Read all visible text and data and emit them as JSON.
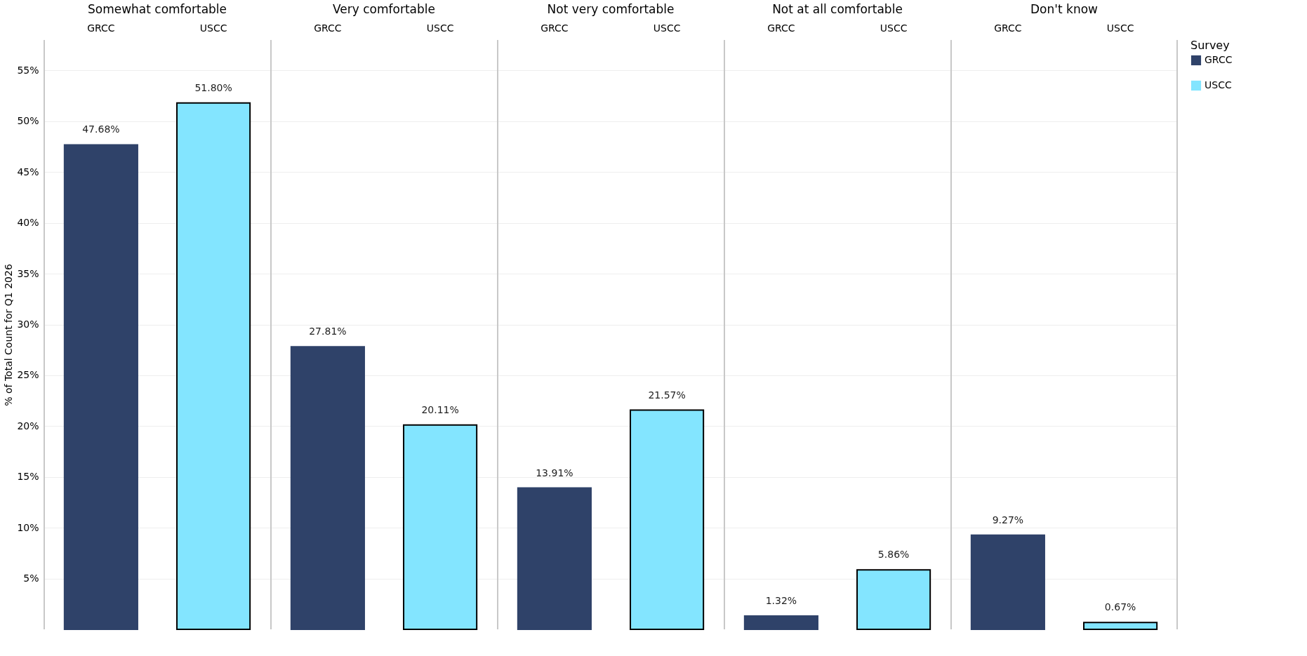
{
  "chart_data": {
    "type": "bar",
    "ylabel": "% of Total Count for Q1 2026",
    "legend_title": "Survey",
    "legend": "right",
    "grid": "y",
    "categories": [
      "Somewhat comfortable",
      "Very comfortable",
      "Not very comfortable",
      "Not at all comfortable",
      "Don't know"
    ],
    "series": [
      {
        "name": "GRCC",
        "color": "#2f4269",
        "values": [
          47.68,
          27.81,
          13.91,
          1.32,
          9.27
        ],
        "value_labels": [
          "47.68%",
          "27.81%",
          "13.91%",
          "1.32%",
          "9.27%"
        ]
      },
      {
        "name": "USCC",
        "color": "#83e5ff",
        "values": [
          51.8,
          20.11,
          21.57,
          5.86,
          0.67
        ],
        "value_labels": [
          "51.80%",
          "20.11%",
          "21.57%",
          "5.86%",
          "0.67%"
        ]
      }
    ],
    "ylim": [
      0,
      58
    ],
    "yticks": [
      {
        "value": 5,
        "label": "5%"
      },
      {
        "value": 10,
        "label": "10%"
      },
      {
        "value": 15,
        "label": "15%"
      },
      {
        "value": 20,
        "label": "20%"
      },
      {
        "value": 25,
        "label": "25%"
      },
      {
        "value": 30,
        "label": "30%"
      },
      {
        "value": 35,
        "label": "35%"
      },
      {
        "value": 40,
        "label": "40%"
      },
      {
        "value": 45,
        "label": "45%"
      },
      {
        "value": 50,
        "label": "50%"
      },
      {
        "value": 55,
        "label": "55%"
      }
    ]
  }
}
